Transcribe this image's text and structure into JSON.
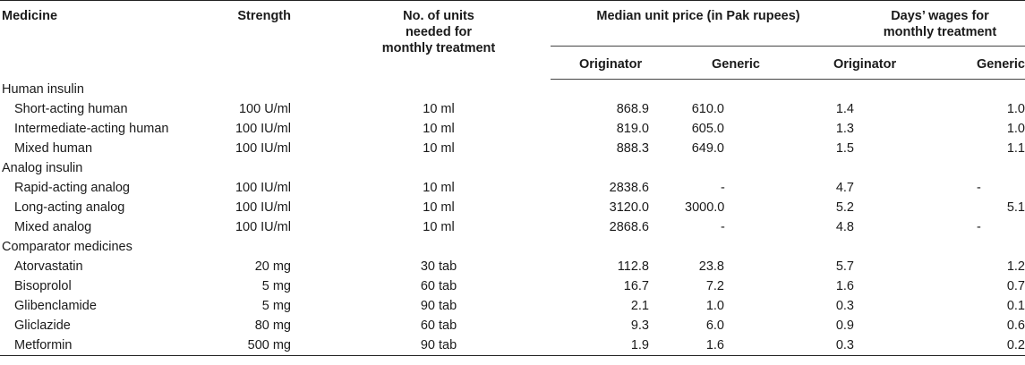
{
  "headers": {
    "medicine": "Medicine",
    "strength": "Strength",
    "units": "No. of units needed for monthly treatment",
    "price": "Median unit price (in Pak rupees)",
    "wages": "Days’ wages for monthly treatment",
    "originator": "Originator",
    "generic": "Generic"
  },
  "groups": [
    {
      "name": "Human insulin",
      "rows": [
        {
          "medicine": "Short-acting human",
          "strength": "100 U/ml",
          "units": "10 ml",
          "price_orig": "868.9",
          "price_gen": "610.0",
          "wage_orig": "1.4",
          "wage_gen": "1.0"
        },
        {
          "medicine": "Intermediate-acting human",
          "strength": "100 IU/ml",
          "units": "10 ml",
          "price_orig": "819.0",
          "price_gen": "605.0",
          "wage_orig": "1.3",
          "wage_gen": "1.0"
        },
        {
          "medicine": "Mixed human",
          "strength": "100 IU/ml",
          "units": "10 ml",
          "price_orig": "888.3",
          "price_gen": "649.0",
          "wage_orig": "1.5",
          "wage_gen": "1.1"
        }
      ]
    },
    {
      "name": "Analog insulin",
      "rows": [
        {
          "medicine": "Rapid-acting analog",
          "strength": "100 IU/ml",
          "units": "10 ml",
          "price_orig": "2838.6",
          "price_gen": "-",
          "wage_orig": "4.7",
          "wage_gen": "-"
        },
        {
          "medicine": "Long-acting analog",
          "strength": "100 IU/ml",
          "units": "10 ml",
          "price_orig": "3120.0",
          "price_gen": "3000.0",
          "wage_orig": "5.2",
          "wage_gen": "5.1"
        },
        {
          "medicine": "Mixed analog",
          "strength": "100 IU/ml",
          "units": "10 ml",
          "price_orig": "2868.6",
          "price_gen": "-",
          "wage_orig": "4.8",
          "wage_gen": "-"
        }
      ]
    },
    {
      "name": "Comparator medicines",
      "rows": [
        {
          "medicine": "Atorvastatin",
          "strength": "20 mg",
          "units": "30 tab",
          "price_orig": "112.8",
          "price_gen": "23.8",
          "wage_orig": "5.7",
          "wage_gen": "1.2"
        },
        {
          "medicine": "Bisoprolol",
          "strength": "5 mg",
          "units": "60 tab",
          "price_orig": "16.7",
          "price_gen": "7.2",
          "wage_orig": "1.6",
          "wage_gen": "0.7"
        },
        {
          "medicine": "Glibenclamide",
          "strength": "5 mg",
          "units": "90 tab",
          "price_orig": "2.1",
          "price_gen": "1.0",
          "wage_orig": "0.3",
          "wage_gen": "0.1"
        },
        {
          "medicine": "Gliclazide",
          "strength": "80 mg",
          "units": "60 tab",
          "price_orig": "9.3",
          "price_gen": "6.0",
          "wage_orig": "0.9",
          "wage_gen": "0.6"
        },
        {
          "medicine": "Metformin",
          "strength": "500 mg",
          "units": "90 tab",
          "price_orig": "1.9",
          "price_gen": "1.6",
          "wage_orig": "0.3",
          "wage_gen": "0.2"
        }
      ]
    }
  ]
}
